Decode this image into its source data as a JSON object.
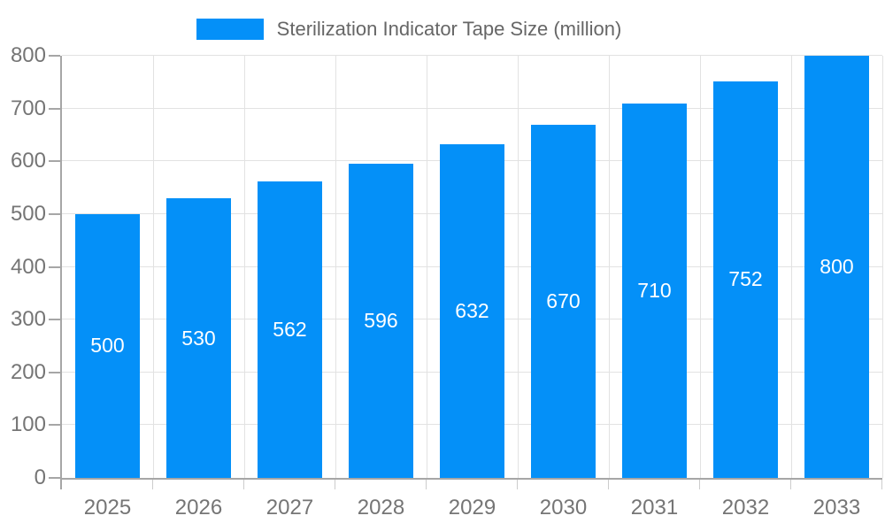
{
  "chart_data": {
    "type": "bar",
    "title": "Sterilization Indicator Tape Size (million)",
    "legend": [
      "Sterilization Indicator Tape Size (million)"
    ],
    "legend_position": "top",
    "categories": [
      "2025",
      "2026",
      "2027",
      "2028",
      "2029",
      "2030",
      "2031",
      "2032",
      "2033"
    ],
    "series": [
      {
        "name": "Sterilization Indicator Tape Size (million)",
        "values": [
          500,
          530,
          562,
          596,
          632,
          670,
          710,
          752,
          800
        ]
      }
    ],
    "values": [
      500,
      530,
      562,
      596,
      632,
      670,
      710,
      752,
      800
    ],
    "xlabel": "",
    "ylabel": "",
    "ylim": [
      0,
      800
    ],
    "y_ticks": [
      0,
      100,
      200,
      300,
      400,
      500,
      600,
      700,
      800
    ],
    "grid": true,
    "bar_label_position": "inside-center"
  },
  "colors": {
    "bar": "#0490f8",
    "grid": "#e2e2e2",
    "axis": "#a6a6a6",
    "x_tick": "#cccccc",
    "tick_label": "#757575",
    "legend_text": "#666666",
    "bar_label": "#ffffff",
    "background": "#ffffff"
  }
}
